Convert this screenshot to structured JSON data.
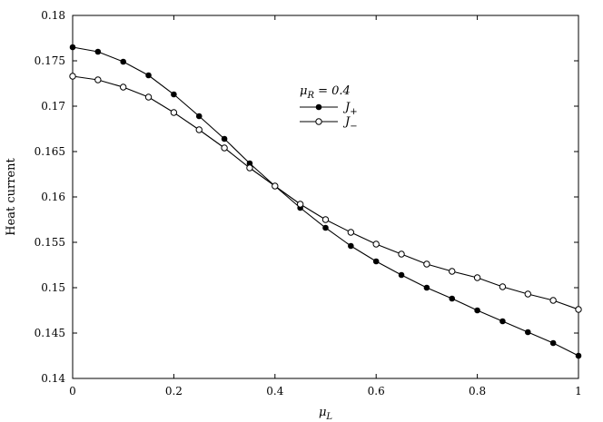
{
  "chart_data": {
    "type": "line",
    "title": "",
    "xlabel": "μ_L",
    "ylabel": "Heat current",
    "xlim": [
      0,
      1
    ],
    "ylim": [
      0.14,
      0.18
    ],
    "x_ticks": [
      0,
      0.2,
      0.4,
      0.6,
      0.8,
      1
    ],
    "x_tick_labels": [
      "0",
      "0.2",
      "0.4",
      "0.6",
      "0.8",
      "1"
    ],
    "y_ticks": [
      0.14,
      0.145,
      0.15,
      0.155,
      0.16,
      0.165,
      0.17,
      0.175,
      0.18
    ],
    "y_tick_labels": [
      "0.14",
      "0.145",
      "0.15",
      "0.155",
      "0.16",
      "0.165",
      "0.17",
      "0.175",
      "0.18"
    ],
    "grid": false,
    "legend_position": "upper-center",
    "annotation": "μ_R = 0.4",
    "x": [
      0,
      0.05,
      0.1,
      0.15,
      0.2,
      0.25,
      0.3,
      0.35,
      0.4,
      0.45,
      0.5,
      0.55,
      0.6,
      0.65,
      0.7,
      0.75,
      0.8,
      0.85,
      0.9,
      0.95,
      1
    ],
    "series": [
      {
        "name": "J_+",
        "marker": "filled-circle",
        "color": "#000000",
        "values": [
          0.1765,
          0.176,
          0.1749,
          0.1734,
          0.1713,
          0.1689,
          0.1664,
          0.1637,
          0.1612,
          0.1588,
          0.1566,
          0.1546,
          0.1529,
          0.1514,
          0.15,
          0.1488,
          0.1475,
          0.1463,
          0.1451,
          0.1439,
          0.1425
        ]
      },
      {
        "name": "J_−",
        "marker": "open-circle",
        "color": "#000000",
        "values": [
          0.1733,
          0.1729,
          0.1721,
          0.171,
          0.1693,
          0.1674,
          0.1654,
          0.1632,
          0.1612,
          0.1592,
          0.1575,
          0.1561,
          0.1548,
          0.1537,
          0.1526,
          0.1518,
          0.1511,
          0.1501,
          0.1493,
          0.1486,
          0.1476
        ]
      }
    ]
  }
}
